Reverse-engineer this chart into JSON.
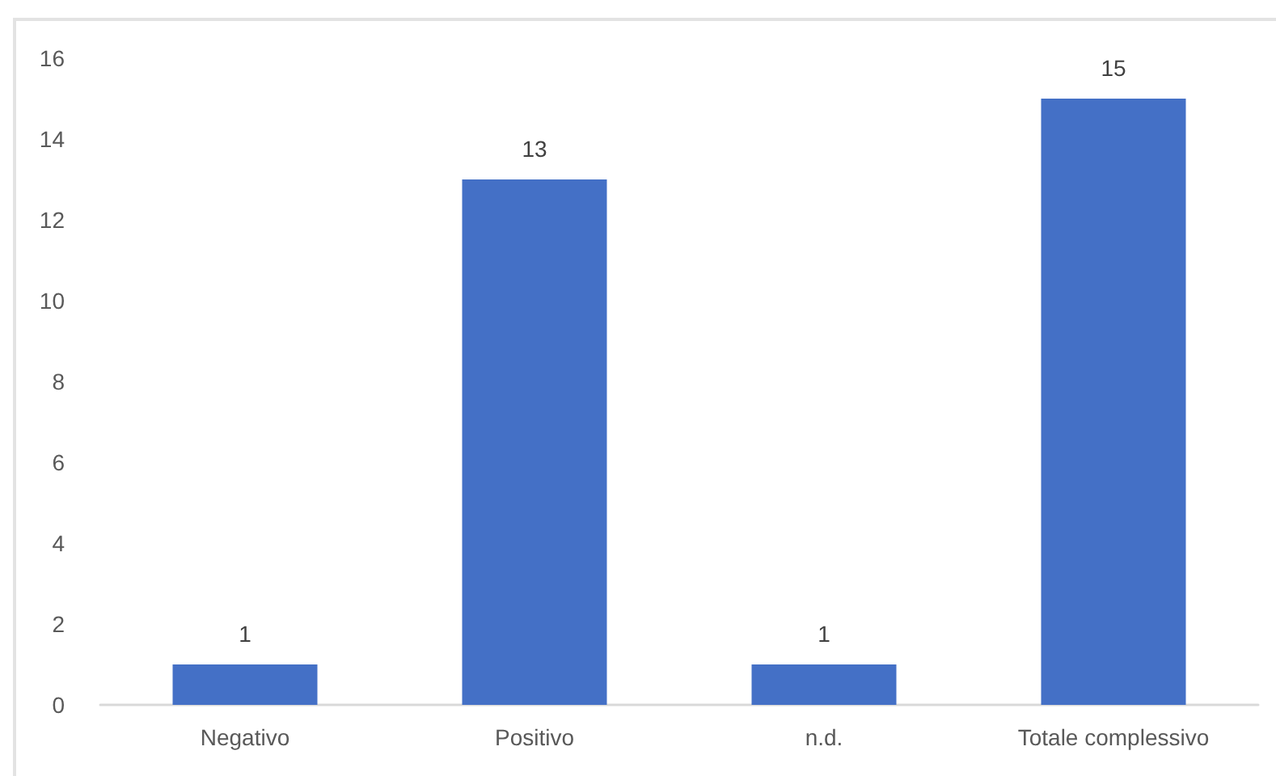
{
  "chart_data": {
    "type": "bar",
    "categories": [
      "Negativo",
      "Positivo",
      "n.d.",
      "Totale complessivo"
    ],
    "values": [
      1,
      13,
      1,
      15
    ],
    "color": "#4470c6",
    "ylim": [
      0,
      16
    ],
    "yticks": [
      0,
      2,
      4,
      6,
      8,
      10,
      12,
      14,
      16
    ],
    "data_labels": true
  }
}
